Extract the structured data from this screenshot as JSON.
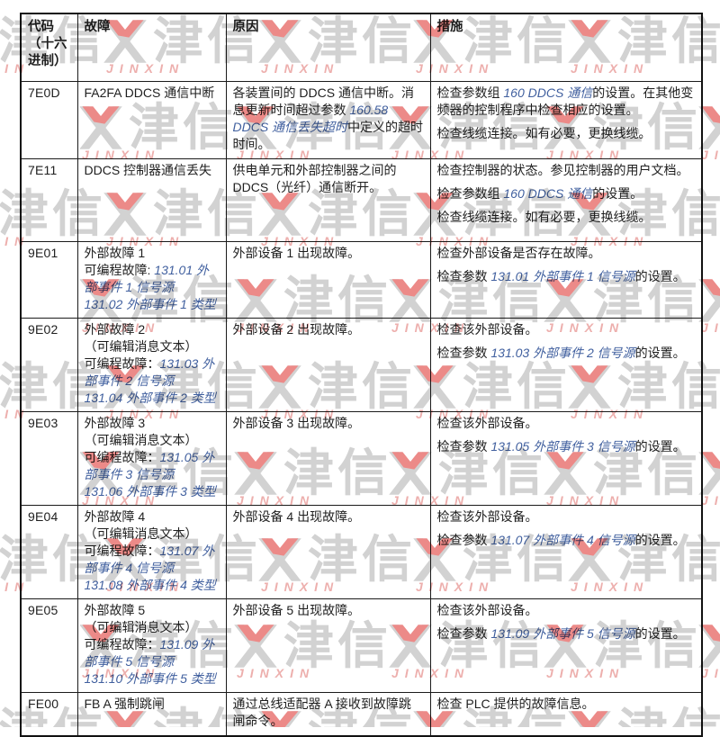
{
  "page": {
    "background": "#ffffff"
  },
  "watermark": {
    "cn_text": "津信",
    "latin_text": "JINXIN",
    "gray_color": "#d2d2d2",
    "red_color": "#ec8a88",
    "latin_color": "#edafad"
  },
  "table": {
    "border_color": "#1b1b1b",
    "param_color": "#41609f",
    "headers": [
      "代码\n（十六\n进制）",
      "故障",
      "原因",
      "措施"
    ],
    "rows": [
      {
        "code": "7E0D",
        "h": 86,
        "fault": [
          [
            [
              "FA2FA DDCS 通信中断",
              "p"
            ]
          ]
        ],
        "cause": [
          [
            [
              "各装置间的 DDCS 通信中断。消息更新时间超过参数 ",
              "p"
            ],
            [
              "160.58 DDCS 通信丢失超时",
              "i"
            ],
            [
              "中定义的超时时间。",
              "p"
            ]
          ]
        ],
        "action": [
          [
            [
              "检查参数组 ",
              "p"
            ],
            [
              "160 DDCS 通信",
              "i"
            ],
            [
              "的设置。在其他变频器的控制程序中检查相应的设置。",
              "p"
            ]
          ],
          [
            [
              "检查线缆连接。如有必要，更换线缆。",
              "p"
            ]
          ]
        ]
      },
      {
        "code": "7E11",
        "h": 92,
        "fault": [
          [
            [
              "DDCS 控制器通信丢失",
              "p"
            ]
          ]
        ],
        "cause": [
          [
            [
              "供电单元和外部控制器之间的 DDCS（光纤）通信断开。",
              "p"
            ]
          ]
        ],
        "action": [
          [
            [
              "检查控制器的状态。参见控制器的用户文档。",
              "p"
            ]
          ],
          [
            [
              "检查参数组 ",
              "p"
            ],
            [
              "160 DDCS 通信",
              "i"
            ],
            [
              "的设置。",
              "p"
            ]
          ],
          [
            [
              "检查线缆连接。如有必要，更换线缆。",
              "p"
            ]
          ]
        ]
      },
      {
        "code": "9E01",
        "h": 83,
        "fault": [
          [
            [
              "外部故障 1",
              "p"
            ]
          ],
          [
            [
              "可编程故障: ",
              "p"
            ],
            [
              "131.01 外部事件 1 信号源",
              "i"
            ]
          ],
          [
            [
              "131.02 外部事件 1 类型",
              "i"
            ]
          ]
        ],
        "cause": [
          [
            [
              "外部设备 1 出现故障。",
              "p"
            ]
          ]
        ],
        "action": [
          [
            [
              "检查外部设备是否存在故障。",
              "p"
            ]
          ],
          [
            [
              "检查参数 ",
              "p"
            ],
            [
              "131.01 外部事件 1 信号源",
              "i"
            ],
            [
              "的设置。",
              "p"
            ]
          ]
        ]
      },
      {
        "code": "9E02",
        "h": 97,
        "fault": [
          [
            [
              "外部故障 2",
              "p"
            ]
          ],
          [
            [
              "（可编辑消息文本）",
              "p"
            ]
          ],
          [
            [
              "可编程故障：",
              "p"
            ],
            [
              "131.03 外部事件 2 信号源",
              "i"
            ]
          ],
          [
            [
              "131.04 外部事件 2 类型",
              "i"
            ]
          ]
        ],
        "cause": [
          [
            [
              "外部设备 2 出现故障。",
              "p"
            ]
          ]
        ],
        "action": [
          [
            [
              "检查该外部设备。",
              "p"
            ]
          ],
          [
            [
              "检查参数 ",
              "p"
            ],
            [
              "131.03 外部事件 2 信号源",
              "i"
            ],
            [
              "的设置。",
              "p"
            ]
          ]
        ]
      },
      {
        "code": "9E03",
        "h": 99,
        "fault": [
          [
            [
              "外部故障 3",
              "p"
            ]
          ],
          [
            [
              "（可编辑消息文本）",
              "p"
            ]
          ],
          [
            [
              "可编程故障：",
              "p"
            ],
            [
              "131.05 外部事件 3 信号源",
              "i"
            ]
          ],
          [
            [
              "131.06 外部事件 3 类型",
              "i"
            ]
          ]
        ],
        "cause": [
          [
            [
              "外部设备 3 出现故障。",
              "p"
            ]
          ]
        ],
        "action": [
          [
            [
              "检查该外部设备。",
              "p"
            ]
          ],
          [
            [
              "检查参数 ",
              "p"
            ],
            [
              "131.05 外部事件 3 信号源",
              "i"
            ],
            [
              "的设置。",
              "p"
            ]
          ]
        ]
      },
      {
        "code": "9E04",
        "h": 103,
        "fault": [
          [
            [
              "外部故障 4",
              "p"
            ]
          ],
          [
            [
              "（可编辑消息文本）",
              "p"
            ]
          ],
          [
            [
              "可编程故障：",
              "p"
            ],
            [
              "131.07 外部事件 4 信号源",
              "i"
            ]
          ],
          [
            [
              "131.08 外部事件 4 类型",
              "i"
            ]
          ]
        ],
        "cause": [
          [
            [
              "外部设备 4 出现故障。",
              "p"
            ]
          ]
        ],
        "action": [
          [
            [
              "检查该外部设备。",
              "p"
            ]
          ],
          [
            [
              "检查参数 ",
              "p"
            ],
            [
              "131.07 外部事件 4 信号源",
              "i"
            ],
            [
              "的设置。",
              "p"
            ]
          ]
        ]
      },
      {
        "code": "9E05",
        "h": 102,
        "fault": [
          [
            [
              "外部故障 5",
              "p"
            ]
          ],
          [
            [
              "（可编辑消息文本）",
              "p"
            ]
          ],
          [
            [
              "可编程故障：",
              "p"
            ],
            [
              "131.09 外部事件 5 信号源",
              "i"
            ]
          ],
          [
            [
              "131.10 外部事件 5 类型",
              "i"
            ]
          ]
        ],
        "cause": [
          [
            [
              "外部设备 5 出现故障。",
              "p"
            ]
          ]
        ],
        "action": [
          [
            [
              "检查该外部设备。",
              "p"
            ]
          ],
          [
            [
              "检查参数 ",
              "p"
            ],
            [
              "131.09 外部事件 5 信号源",
              "i"
            ],
            [
              "的设置。",
              "p"
            ]
          ]
        ]
      },
      {
        "code": "FE00",
        "h": 48,
        "fault": [
          [
            [
              "FB A 强制跳闸",
              "p"
            ]
          ]
        ],
        "cause": [
          [
            [
              "通过总线适配器 A 接收到故障跳闸命令。",
              "p"
            ]
          ]
        ],
        "action": [
          [
            [
              "检查 PLC 提供的故障信息。",
              "p"
            ]
          ]
        ]
      }
    ]
  }
}
